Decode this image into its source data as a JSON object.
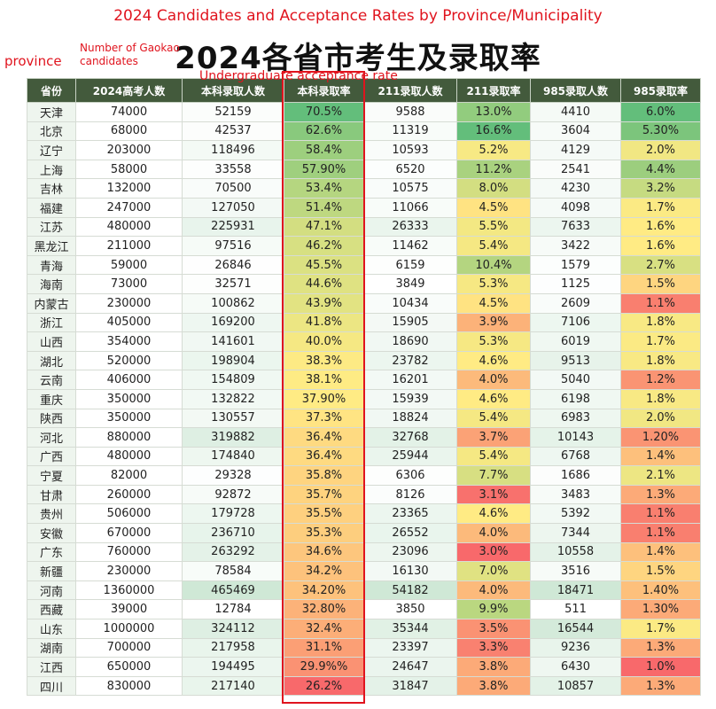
{
  "annotations": {
    "title_en": "2024 Candidates and Acceptance Rates by Province/Municipality",
    "candidates_label": "Number of Gaokao candidates",
    "province_label": "province",
    "rate_label": "Undergraduate acceptance rate"
  },
  "header": {
    "title": "2024各省市考生及录取率"
  },
  "table": {
    "columns": [
      "省份",
      "2024高考人数",
      "本科录取人数",
      "本科录取率",
      "211录取人数",
      "211录取率",
      "985录取人数",
      "985录取率"
    ],
    "rows": [
      [
        "天津",
        "74000",
        "52159",
        "70.5%",
        "9588",
        "13.0%",
        "4410",
        "6.0%"
      ],
      [
        "北京",
        "68000",
        "42537",
        "62.6%",
        "11319",
        "16.6%",
        "3604",
        "5.30%"
      ],
      [
        "辽宁",
        "203000",
        "118496",
        "58.4%",
        "10593",
        "5.2%",
        "4129",
        "2.0%"
      ],
      [
        "上海",
        "58000",
        "33558",
        "57.90%",
        "6520",
        "11.2%",
        "2541",
        "4.4%"
      ],
      [
        "吉林",
        "132000",
        "70500",
        "53.4%",
        "10575",
        "8.0%",
        "4230",
        "3.2%"
      ],
      [
        "福建",
        "247000",
        "127050",
        "51.4%",
        "11066",
        "4.5%",
        "4098",
        "1.7%"
      ],
      [
        "江苏",
        "480000",
        "225931",
        "47.1%",
        "26333",
        "5.5%",
        "7633",
        "1.6%"
      ],
      [
        "黑龙江",
        "211000",
        "97516",
        "46.2%",
        "11462",
        "5.4%",
        "3422",
        "1.6%"
      ],
      [
        "青海",
        "59000",
        "26846",
        "45.5%",
        "6159",
        "10.4%",
        "1579",
        "2.7%"
      ],
      [
        "海南",
        "73000",
        "32571",
        "44.6%",
        "3849",
        "5.3%",
        "1125",
        "1.5%"
      ],
      [
        "内蒙古",
        "230000",
        "100862",
        "43.9%",
        "10434",
        "4.5%",
        "2609",
        "1.1%"
      ],
      [
        "浙江",
        "405000",
        "169200",
        "41.8%",
        "15905",
        "3.9%",
        "7106",
        "1.8%"
      ],
      [
        "山西",
        "354000",
        "141601",
        "40.0%",
        "18690",
        "5.3%",
        "6019",
        "1.7%"
      ],
      [
        "湖北",
        "520000",
        "198904",
        "38.3%",
        "23782",
        "4.6%",
        "9513",
        "1.8%"
      ],
      [
        "云南",
        "406000",
        "154809",
        "38.1%",
        "16201",
        "4.0%",
        "5040",
        "1.2%"
      ],
      [
        "重庆",
        "350000",
        "132822",
        "37.90%",
        "15939",
        "4.6%",
        "6198",
        "1.8%"
      ],
      [
        "陕西",
        "350000",
        "130557",
        "37.3%",
        "18824",
        "5.4%",
        "6983",
        "2.0%"
      ],
      [
        "河北",
        "880000",
        "319882",
        "36.4%",
        "32768",
        "3.7%",
        "10143",
        "1.20%"
      ],
      [
        "广西",
        "480000",
        "174840",
        "36.4%",
        "25944",
        "5.4%",
        "6768",
        "1.4%"
      ],
      [
        "宁夏",
        "82000",
        "29328",
        "35.8%",
        "6306",
        "7.7%",
        "1686",
        "2.1%"
      ],
      [
        "甘肃",
        "260000",
        "92872",
        "35.7%",
        "8126",
        "3.1%",
        "3483",
        "1.3%"
      ],
      [
        "贵州",
        "506000",
        "179728",
        "35.5%",
        "23365",
        "4.6%",
        "5392",
        "1.1%"
      ],
      [
        "安徽",
        "670000",
        "236710",
        "35.3%",
        "26552",
        "4.0%",
        "7344",
        "1.1%"
      ],
      [
        "广东",
        "760000",
        "263292",
        "34.6%",
        "23096",
        "3.0%",
        "10558",
        "1.4%"
      ],
      [
        "新疆",
        "230000",
        "78584",
        "34.2%",
        "16130",
        "7.0%",
        "3516",
        "1.5%"
      ],
      [
        "河南",
        "1360000",
        "465469",
        "34.20%",
        "54182",
        "4.0%",
        "18471",
        "1.40%"
      ],
      [
        "西藏",
        "39000",
        "12784",
        "32.80%",
        "3850",
        "9.9%",
        "511",
        "1.30%"
      ],
      [
        "山东",
        "1000000",
        "324112",
        "32.4%",
        "35344",
        "3.5%",
        "16544",
        "1.7%"
      ],
      [
        "湖南",
        "700000",
        "217958",
        "31.1%",
        "23397",
        "3.3%",
        "9236",
        "1.3%"
      ],
      [
        "江西",
        "650000",
        "194495",
        "29.9%%",
        "24647",
        "3.8%",
        "6430",
        "1.0%"
      ],
      [
        "四川",
        "830000",
        "217140",
        "26.2%",
        "31847",
        "3.8%",
        "10857",
        "1.3%"
      ]
    ]
  }
}
